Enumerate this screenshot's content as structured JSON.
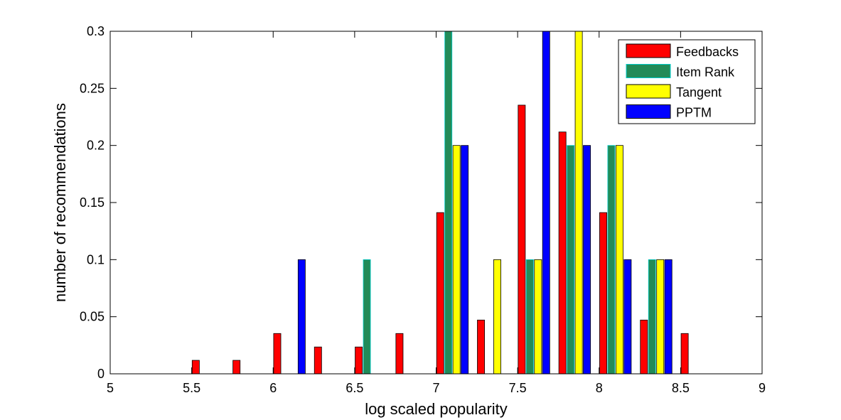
{
  "chart_data": {
    "type": "bar",
    "title": "",
    "xlabel": "log scaled popularity",
    "ylabel": "number of recommendations",
    "xlim": [
      5,
      9
    ],
    "ylim": [
      0,
      0.3
    ],
    "xticks": [
      "5",
      "5.5",
      "6",
      "6.5",
      "7",
      "7.5",
      "8",
      "8.5",
      "9"
    ],
    "yticks": [
      "0",
      "0.05",
      "0.1",
      "0.15",
      "0.2",
      "0.25",
      "0.3"
    ],
    "grid": false,
    "legend_position": "top-right",
    "x": [
      5.1,
      5.35,
      5.6,
      5.85,
      6.1,
      6.35,
      6.6,
      6.85,
      7.1,
      7.35,
      7.6,
      7.85,
      8.1,
      8.35,
      8.6,
      8.85
    ],
    "series": [
      {
        "name": "Feedbacks",
        "color": "#ff0000",
        "values": [
          0,
          0,
          0.0118,
          0.0118,
          0.0353,
          0.0235,
          0.0235,
          0.0353,
          0.1412,
          0.0471,
          0.2353,
          0.2118,
          0.1412,
          0.0471,
          0.0353,
          0
        ]
      },
      {
        "name": "Item Rank",
        "color": "#228b58",
        "edge": "#00cccc",
        "values": [
          0,
          0,
          0,
          0,
          0,
          0,
          0.1,
          0,
          0.3,
          0,
          0.1,
          0.2,
          0.2,
          0.1,
          0,
          0
        ]
      },
      {
        "name": "Tangent",
        "color": "#ffff00",
        "values": [
          0,
          0,
          0,
          0,
          0,
          0,
          0,
          0,
          0.2,
          0.1,
          0.1,
          0.3,
          0.2,
          0.1,
          0,
          0
        ]
      },
      {
        "name": "PPTM",
        "color": "#0000ff",
        "values": [
          0,
          0,
          0,
          0,
          0.1,
          0,
          0,
          0,
          0.2,
          0,
          0.3,
          0.2,
          0.1,
          0.1,
          0,
          0
        ]
      }
    ]
  }
}
